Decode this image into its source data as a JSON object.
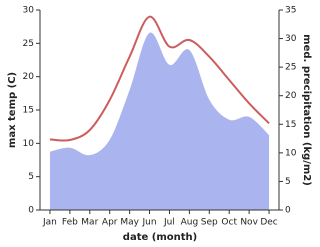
{
  "chart_data": {
    "type": "line",
    "categories": [
      "Jan",
      "Feb",
      "Mar",
      "Apr",
      "May",
      "Jun",
      "Jul",
      "Aug",
      "Sep",
      "Oct",
      "Nov",
      "Dec"
    ],
    "x_label": "date (month)",
    "y_label": "max temp (C)",
    "y2_label": "med. precipitation (kg/m2)",
    "series": [
      {
        "name": "max temp",
        "color": "#cd5c5c",
        "values": [
          10.6,
          10.5,
          12,
          16.5,
          23,
          29,
          24.5,
          25.5,
          23,
          19.5,
          16,
          13
        ]
      },
      {
        "name": "med. precipitation",
        "color": "#aab4ee",
        "axis": "y2",
        "values": [
          10.2,
          10.9,
          9.6,
          12.3,
          21,
          31,
          25.4,
          28,
          19.3,
          15.8,
          16.3,
          13.1
        ]
      }
    ],
    "ylim": [
      0,
      30
    ],
    "yticks": [
      0,
      5,
      10,
      15,
      20,
      25,
      30
    ],
    "y2lim": [
      0,
      35
    ],
    "y2ticks": [
      0,
      5,
      10,
      15,
      20,
      25,
      30,
      35
    ]
  }
}
